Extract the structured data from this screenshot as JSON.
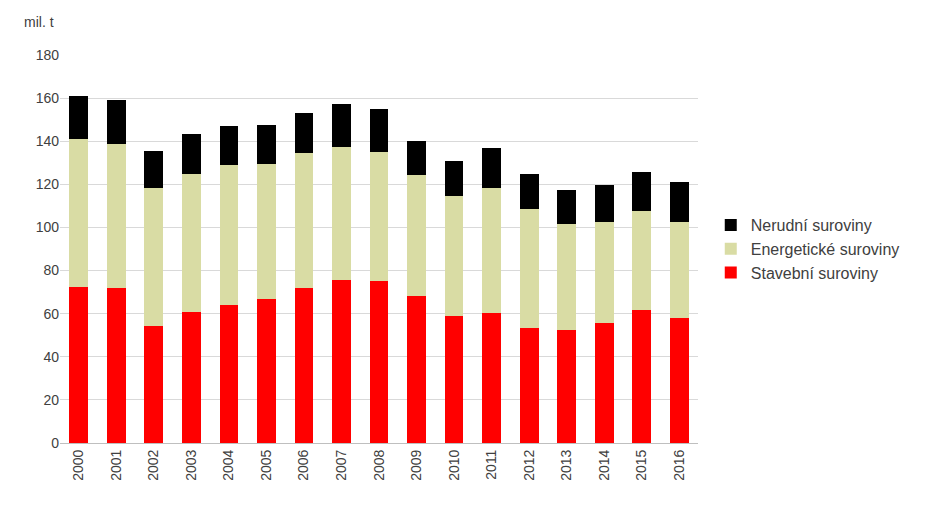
{
  "chart_data": {
    "type": "bar",
    "stacked": true,
    "ylabel": "mil. t",
    "categories": [
      "2000",
      "2001",
      "2002",
      "2003",
      "2004",
      "2005",
      "2006",
      "2007",
      "2008",
      "2009",
      "2010",
      "2011",
      "2012",
      "2013",
      "2014",
      "2015",
      "2016"
    ],
    "series": [
      {
        "name": "Stavební suroviny",
        "color": "#ff0000",
        "values": [
          72.5,
          72,
          54.5,
          61,
          64,
          67,
          72,
          75.5,
          75,
          68,
          59,
          60.5,
          53.5,
          52.5,
          55.5,
          61.5,
          58
        ]
      },
      {
        "name": "Energetické suroviny",
        "color": "#d9dca4",
        "values": [
          68.5,
          66.5,
          64,
          64,
          65,
          62.5,
          62.5,
          62,
          60,
          56.5,
          55.5,
          58,
          55,
          49,
          47,
          46,
          44.5
        ]
      },
      {
        "name": "Nerudní suroviny",
        "color": "#000000",
        "values": [
          20,
          20.5,
          17,
          18.5,
          18,
          18,
          18.5,
          20,
          20,
          15.5,
          16.5,
          18.5,
          16.5,
          16,
          17,
          18,
          18.5
        ]
      }
    ],
    "ylim": [
      0,
      180
    ],
    "yticks": [
      0,
      20,
      40,
      60,
      80,
      100,
      120,
      140,
      160,
      180
    ],
    "grid": true,
    "legend": "right"
  }
}
